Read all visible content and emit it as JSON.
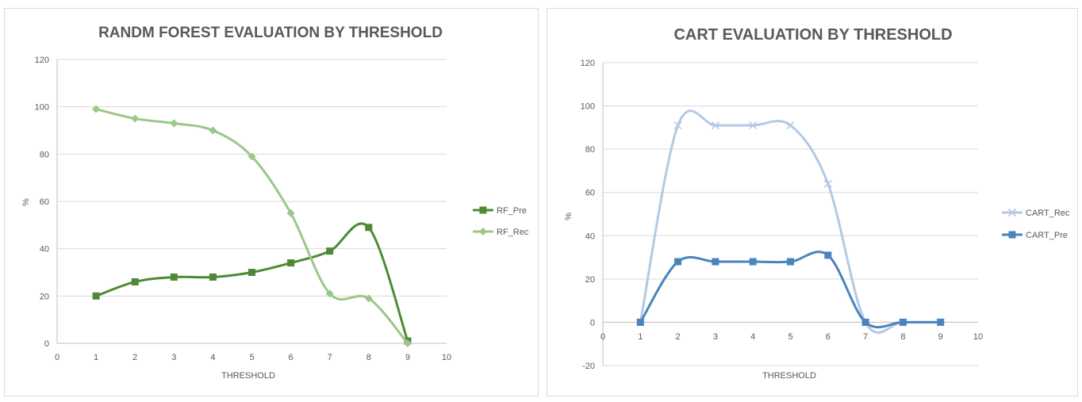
{
  "chart_data": [
    {
      "type": "line",
      "title": "RANDM FOREST EVALUATION BY THRESHOLD",
      "xlabel": "THRESHOLD",
      "ylabel": "%",
      "xlim": [
        0,
        10
      ],
      "ylim": [
        0,
        120
      ],
      "x_ticks": [
        "0",
        "1",
        "2",
        "3",
        "4",
        "5",
        "6",
        "7",
        "8",
        "9",
        "10"
      ],
      "y_ticks": [
        "0",
        "20",
        "40",
        "60",
        "80",
        "100",
        "120"
      ],
      "grid": "horizontal",
      "legend_position": "right",
      "series": [
        {
          "name": "RF_Pre",
          "color": "#4e8a35",
          "marker": "square",
          "x": [
            1,
            2,
            3,
            4,
            5,
            6,
            7,
            8,
            9
          ],
          "values": [
            20,
            26,
            28,
            28,
            30,
            34,
            39,
            49,
            1
          ]
        },
        {
          "name": "RF_Rec",
          "color": "#9cc789",
          "marker": "diamond",
          "x": [
            1,
            2,
            3,
            4,
            5,
            6,
            7,
            8,
            9
          ],
          "values": [
            99,
            95,
            93,
            90,
            79,
            55,
            21,
            19,
            0
          ]
        }
      ]
    },
    {
      "type": "line",
      "title": "CART EVALUATION BY THRESHOLD",
      "xlabel": "THRESHOLD",
      "ylabel": "%",
      "xlim": [
        0,
        10
      ],
      "ylim": [
        -20,
        120
      ],
      "x_ticks": [
        "0",
        "1",
        "2",
        "3",
        "4",
        "5",
        "6",
        "7",
        "8",
        "9",
        "10"
      ],
      "y_ticks": [
        "-20",
        "0",
        "20",
        "40",
        "60",
        "80",
        "100",
        "120"
      ],
      "grid": "horizontal",
      "legend_position": "right",
      "series": [
        {
          "name": "CART_Rec",
          "color": "#b2c9e6",
          "marker": "x",
          "x": [
            1,
            2,
            3,
            4,
            5,
            6,
            7,
            8,
            9
          ],
          "values": [
            0,
            91,
            91,
            91,
            91,
            64,
            0,
            0,
            0
          ]
        },
        {
          "name": "CART_Pre",
          "color": "#4a84bd",
          "marker": "square",
          "x": [
            1,
            2,
            3,
            4,
            5,
            6,
            7,
            8,
            9
          ],
          "values": [
            0,
            28,
            28,
            28,
            28,
            31,
            0,
            0,
            0
          ]
        }
      ]
    }
  ]
}
